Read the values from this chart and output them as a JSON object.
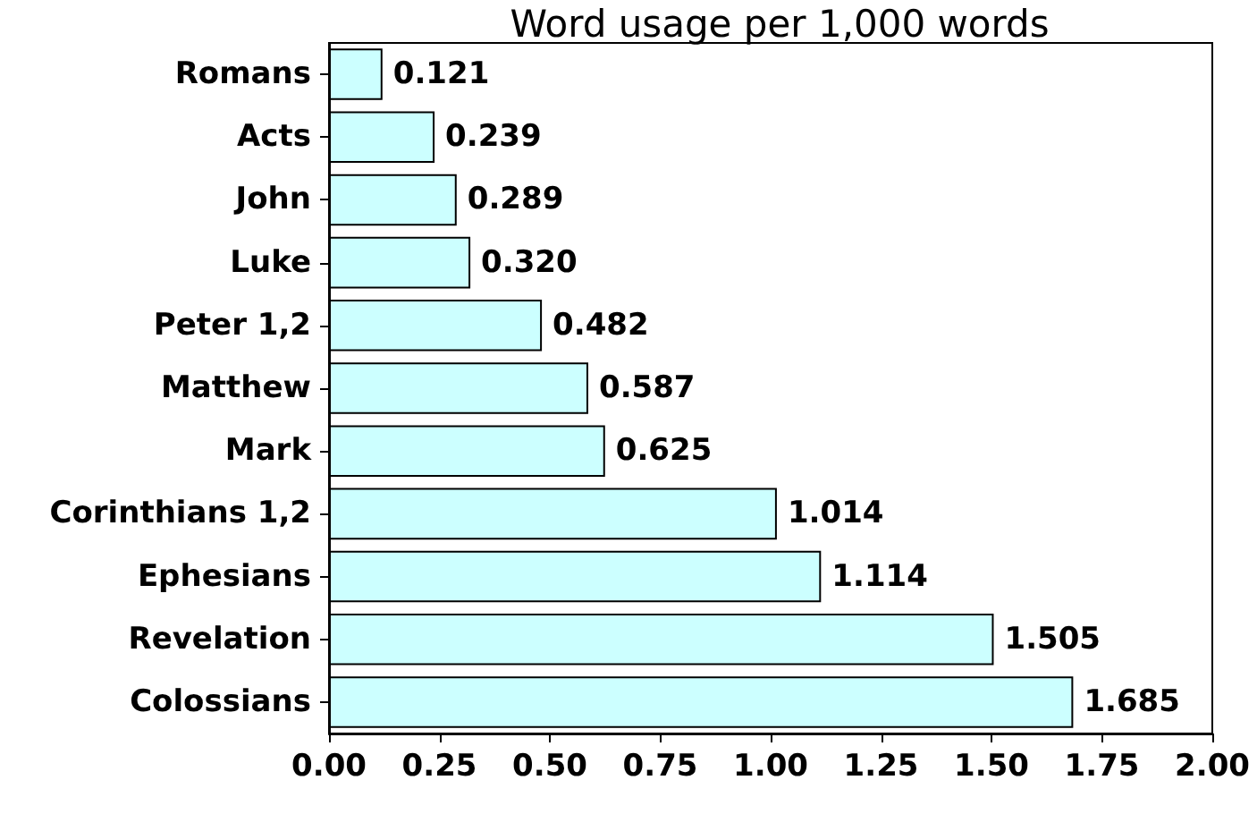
{
  "chart_data": {
    "type": "bar",
    "orientation": "horizontal",
    "title": "Word usage per 1,000 words",
    "categories": [
      "Romans",
      "Acts",
      "John",
      "Luke",
      "Peter 1,2",
      "Matthew",
      "Mark",
      "Corinthians 1,2",
      "Ephesians",
      "Revelation",
      "Colossians"
    ],
    "values": [
      0.121,
      0.239,
      0.289,
      0.32,
      0.482,
      0.587,
      0.625,
      1.014,
      1.114,
      1.505,
      1.685
    ],
    "value_labels": [
      "0.121",
      "0.239",
      "0.289",
      "0.320",
      "0.482",
      "0.587",
      "0.625",
      "1.014",
      "1.114",
      "1.505",
      "1.685"
    ],
    "color": "#ccffff",
    "xlim": [
      0,
      2
    ],
    "xticks": [
      {
        "value": 0,
        "label": "0.00"
      },
      {
        "value": 0.25,
        "label": "0.25"
      },
      {
        "value": 0.5,
        "label": "0.50"
      },
      {
        "value": 0.75,
        "label": "0.75"
      },
      {
        "value": 1,
        "label": "1.00"
      },
      {
        "value": 1.25,
        "label": "1.25"
      },
      {
        "value": 1.5,
        "label": "1.50"
      },
      {
        "value": 1.75,
        "label": "1.75"
      },
      {
        "value": 2,
        "label": "2.00"
      }
    ],
    "grid": false
  }
}
